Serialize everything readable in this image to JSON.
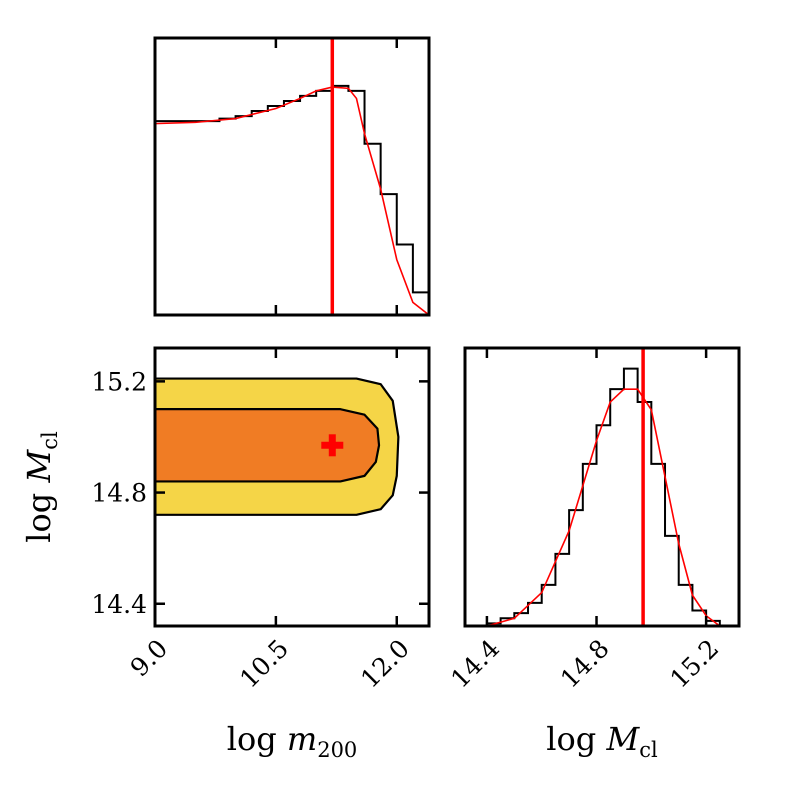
{
  "chart_data": [
    {
      "type": "histogram",
      "panel": "marginal-log-m200",
      "title": "",
      "xlabel": "",
      "ylabel": "",
      "xlim": [
        9.0,
        12.4
      ],
      "ylim": [
        0,
        1.1
      ],
      "bin_edges": [
        9.0,
        9.2,
        9.4,
        9.6,
        9.8,
        10.0,
        10.2,
        10.4,
        10.6,
        10.8,
        11.0,
        11.2,
        11.4,
        11.6,
        11.8,
        12.0,
        12.2,
        12.4
      ],
      "histogram_values": [
        0.77,
        0.77,
        0.77,
        0.77,
        0.78,
        0.79,
        0.81,
        0.83,
        0.85,
        0.87,
        0.89,
        0.91,
        0.89,
        0.68,
        0.48,
        0.28,
        0.09
      ],
      "smooth_curve": {
        "color": "#ff0000",
        "x": [
          9.0,
          9.5,
          10.0,
          10.5,
          10.8,
          11.0,
          11.2,
          11.4,
          11.5,
          11.6,
          11.8,
          12.0,
          12.2,
          12.4
        ],
        "y": [
          0.76,
          0.765,
          0.78,
          0.82,
          0.86,
          0.89,
          0.905,
          0.9,
          0.86,
          0.72,
          0.5,
          0.22,
          0.05,
          0.0
        ]
      },
      "truth_line": {
        "x": 11.2,
        "color": "#ff0000"
      }
    },
    {
      "type": "contour",
      "panel": "joint-log-m200-log-Mcl",
      "xlabel": "log m_200",
      "ylabel": "log M_cl",
      "xlim": [
        9.0,
        12.4
      ],
      "ylim": [
        14.32,
        15.32
      ],
      "x_ticks": [
        "9.0",
        "10.5",
        "12.0"
      ],
      "y_ticks": [
        "14.4",
        "14.8",
        "15.2"
      ],
      "contours": [
        {
          "level": "outer",
          "color": "#f5d547",
          "x": [
            9.0,
            11.5,
            11.8,
            11.95,
            12.02,
            12.0,
            11.95,
            11.8,
            11.5,
            9.0
          ],
          "y": [
            15.21,
            15.21,
            15.19,
            15.13,
            15.0,
            14.86,
            14.79,
            14.74,
            14.72,
            14.72
          ]
        },
        {
          "level": "inner",
          "color": "#f07c24",
          "x": [
            9.0,
            11.3,
            11.6,
            11.76,
            11.78,
            11.74,
            11.6,
            11.3,
            9.0
          ],
          "y": [
            15.1,
            15.1,
            15.08,
            15.03,
            14.97,
            14.91,
            14.86,
            14.84,
            14.84
          ]
        }
      ],
      "truth_point": {
        "x": 11.2,
        "y": 14.97,
        "marker": "+",
        "color": "#ff0000"
      }
    },
    {
      "type": "histogram",
      "panel": "marginal-log-Mcl",
      "xlabel": "log M_cl",
      "ylabel": "",
      "xlim": [
        14.32,
        15.32
      ],
      "ylim": [
        0,
        1.08
      ],
      "x_ticks": [
        "14.4",
        "14.8",
        "15.2"
      ],
      "bin_edges": [
        14.4,
        14.45,
        14.5,
        14.55,
        14.6,
        14.65,
        14.7,
        14.75,
        14.8,
        14.85,
        14.9,
        14.95,
        15.0,
        15.05,
        15.1,
        15.15,
        15.2,
        15.25
      ],
      "histogram_values": [
        0.01,
        0.03,
        0.05,
        0.09,
        0.16,
        0.28,
        0.45,
        0.63,
        0.78,
        0.92,
        1.0,
        0.87,
        0.63,
        0.35,
        0.16,
        0.06,
        0.02
      ],
      "smooth_curve": {
        "color": "#ff0000",
        "x": [
          14.4,
          14.5,
          14.6,
          14.7,
          14.8,
          14.85,
          14.9,
          14.95,
          15.0,
          15.05,
          15.1,
          15.15,
          15.2,
          15.25
        ],
        "y": [
          0.0,
          0.03,
          0.13,
          0.37,
          0.72,
          0.87,
          0.92,
          0.92,
          0.84,
          0.58,
          0.32,
          0.12,
          0.04,
          0.0
        ]
      },
      "truth_line": {
        "x": 14.97,
        "color": "#ff0000"
      }
    }
  ]
}
